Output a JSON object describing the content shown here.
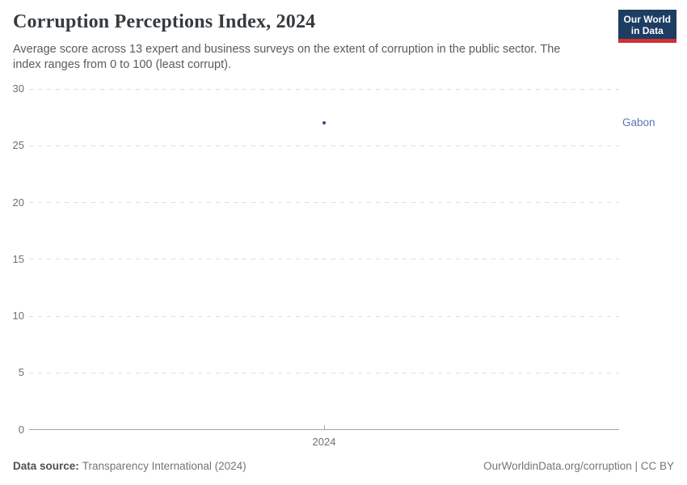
{
  "header": {
    "title": "Corruption Perceptions Index, 2024",
    "subtitle": "Average score across 13 expert and business surveys on the extent of corruption in the public sector. The index ranges from 0 to 100 (least corrupt).",
    "logo": {
      "line1": "Our World",
      "line2": "in Data"
    }
  },
  "chart_data": {
    "type": "scatter",
    "title": "Corruption Perceptions Index, 2024",
    "x": [
      2024
    ],
    "series": [
      {
        "name": "Gabon",
        "values": [
          27
        ]
      }
    ],
    "xlabel": "",
    "ylabel": "",
    "ylim": [
      0,
      30
    ],
    "yticks": [
      0,
      5,
      10,
      15,
      20,
      25,
      30
    ],
    "xticks": [
      "2024"
    ],
    "grid": true,
    "legend_position": "right-of-point",
    "colors": {
      "point": "#3b4c86",
      "entity_label": "#5b79ae"
    }
  },
  "footer": {
    "datasource_label": "Data source:",
    "datasource_value": "Transparency International (2024)",
    "credit": "OurWorldinData.org/corruption | CC BY"
  }
}
